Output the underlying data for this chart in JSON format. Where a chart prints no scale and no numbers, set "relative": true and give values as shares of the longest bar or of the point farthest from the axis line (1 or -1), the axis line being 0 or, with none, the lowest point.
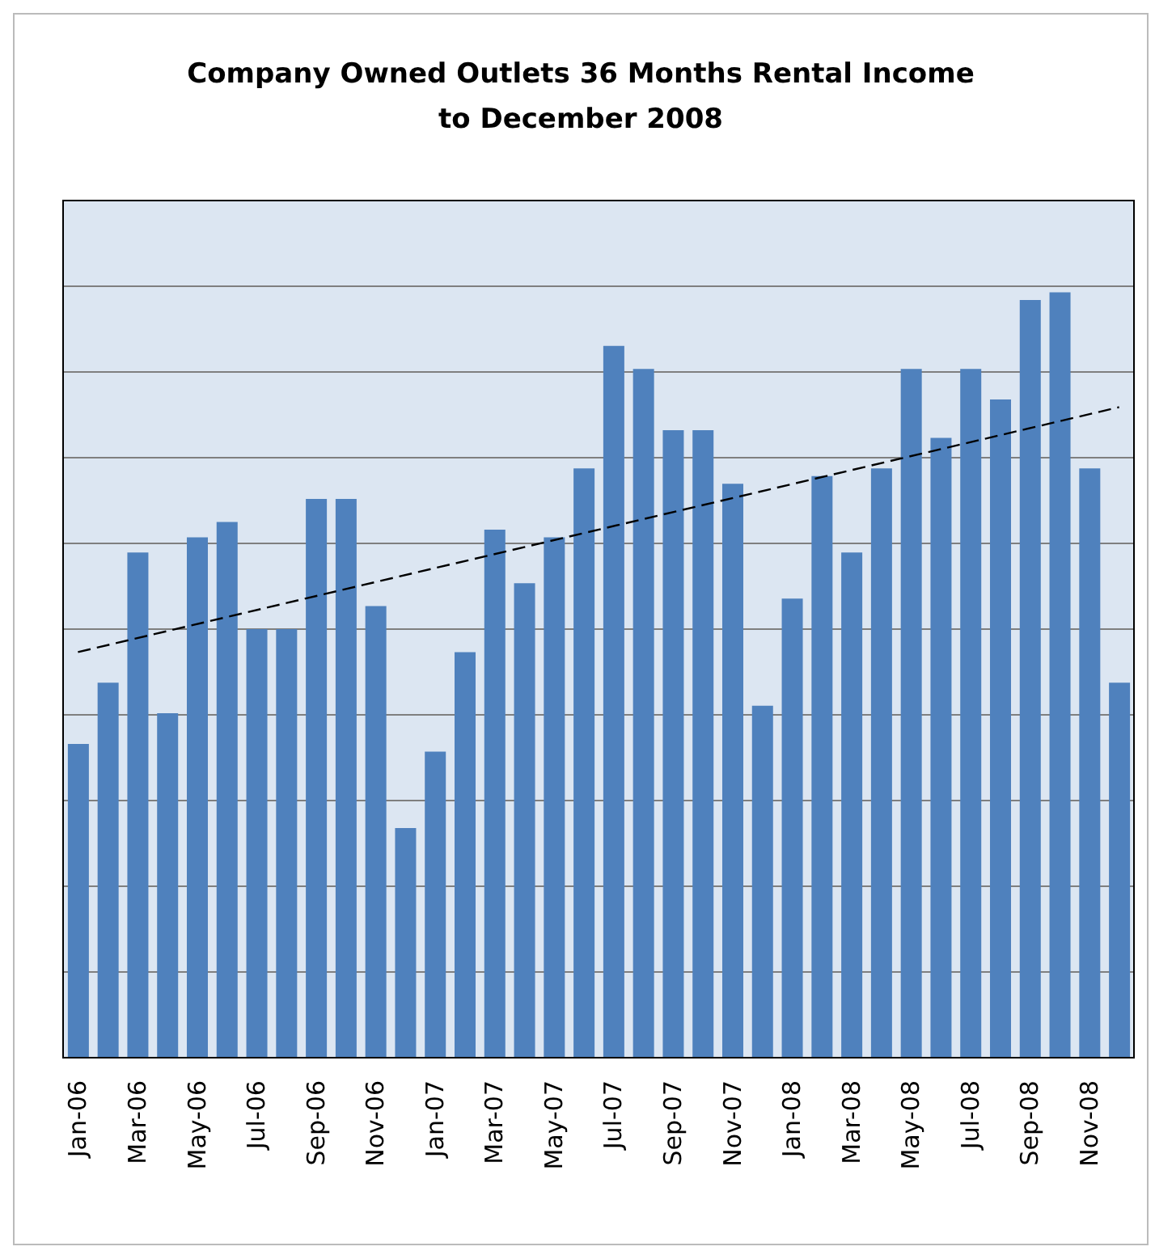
{
  "chart_data": {
    "type": "bar",
    "title": "Company Owned Outlets 36 Months Rental Income\nto December 2008",
    "relative": true,
    "grid": "y",
    "legend": false,
    "categories": [
      "Jan-06",
      null,
      "Mar-06",
      null,
      "May-06",
      null,
      "Jul-06",
      null,
      "Sep-06",
      null,
      "Nov-06",
      null,
      "Jan-07",
      null,
      "Mar-07",
      null,
      "May-07",
      null,
      "Jul-07",
      null,
      "Sep-07",
      null,
      "Nov-07",
      null,
      "Jan-08",
      null,
      "Mar-08",
      null,
      "May-08",
      null,
      "Jul-08",
      null,
      "Sep-08",
      null,
      "Nov-08",
      null
    ],
    "series": [
      {
        "color": "#4f81bd",
        "values": [
          0.41,
          0.49,
          0.66,
          0.45,
          0.68,
          0.7,
          0.56,
          0.56,
          0.73,
          0.73,
          0.59,
          0.3,
          0.4,
          0.53,
          0.69,
          0.62,
          0.68,
          0.77,
          0.93,
          0.9,
          0.82,
          0.82,
          0.75,
          0.46,
          0.6,
          0.76,
          0.66,
          0.77,
          0.9,
          0.81,
          0.9,
          0.86,
          0.99,
          1,
          0.77,
          0.49
        ]
      },
      {
        "type": "line",
        "color": "#000000",
        "line_style": "dashed",
        "marker": "none",
        "values": [
          0.53,
          null,
          null,
          null,
          null,
          null,
          null,
          null,
          null,
          null,
          null,
          null,
          null,
          null,
          null,
          null,
          null,
          null,
          null,
          null,
          null,
          null,
          null,
          null,
          null,
          null,
          null,
          null,
          null,
          null,
          null,
          null,
          null,
          null,
          null,
          0.85
        ]
      }
    ]
  }
}
